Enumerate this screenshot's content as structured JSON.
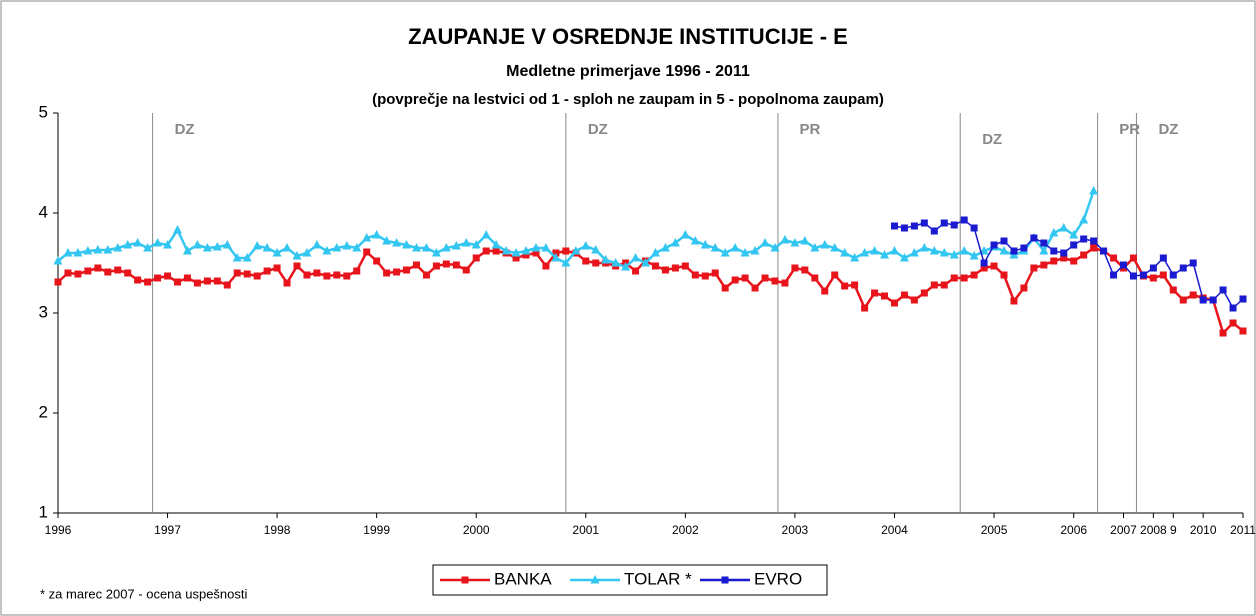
{
  "chart_data": {
    "type": "line",
    "title": "ZAUPANJE V OSREDNJE INSTITUCIJE - E",
    "subtitle": "Medletne primerjave 1996 - 2011",
    "subtitle2": "(povprečje na lestvici od 1 - sploh ne zaupam in 5 - popolnoma zaupam)",
    "note": "* za marec 2007 - ocena uspešnosti",
    "ylim": [
      1,
      5
    ],
    "yticks": [
      1,
      2,
      3,
      4,
      5
    ],
    "categories": [
      "1996",
      null,
      null,
      null,
      null,
      null,
      null,
      null,
      null,
      null,
      null,
      "1997",
      null,
      null,
      null,
      null,
      null,
      null,
      null,
      null,
      null,
      null,
      "1998",
      null,
      null,
      null,
      null,
      null,
      null,
      null,
      null,
      null,
      "1999",
      null,
      null,
      null,
      null,
      null,
      null,
      null,
      null,
      null,
      "2000",
      null,
      null,
      null,
      null,
      null,
      null,
      null,
      null,
      null,
      null,
      "2001",
      null,
      null,
      null,
      null,
      null,
      null,
      null,
      null,
      null,
      "2002",
      null,
      null,
      null,
      null,
      null,
      null,
      null,
      null,
      null,
      null,
      "2003",
      null,
      null,
      null,
      null,
      null,
      null,
      null,
      null,
      null,
      "2004",
      null,
      null,
      null,
      null,
      null,
      null,
      null,
      null,
      null,
      "2005",
      null,
      null,
      null,
      null,
      null,
      null,
      null,
      "2006",
      null,
      null,
      null,
      null,
      "2007",
      null,
      null,
      "2008",
      null,
      "9",
      null,
      null,
      "2010",
      null,
      null,
      null,
      "2011"
    ],
    "annotations": [
      {
        "x": 9.5,
        "label": "DZ"
      },
      {
        "x": 51,
        "label": "DZ"
      },
      {
        "x": 72.3,
        "label": "PR"
      },
      {
        "x": 90.6,
        "label": "DZ"
      },
      {
        "x": 104.4,
        "label": "PR"
      },
      {
        "x": 108.3,
        "label": "DZ"
      }
    ],
    "series": [
      {
        "name": "BANKA",
        "color": "#e8141c",
        "marker": "square",
        "values": [
          3.31,
          3.4,
          3.39,
          3.42,
          3.45,
          3.41,
          3.43,
          3.4,
          3.33,
          3.31,
          3.35,
          3.37,
          3.31,
          3.35,
          3.3,
          3.32,
          3.32,
          3.28,
          3.4,
          3.39,
          3.37,
          3.42,
          3.45,
          3.3,
          3.47,
          3.38,
          3.4,
          3.37,
          3.38,
          3.37,
          3.42,
          3.61,
          3.52,
          3.4,
          3.41,
          3.43,
          3.48,
          3.38,
          3.47,
          3.49,
          3.48,
          3.43,
          3.55,
          3.62,
          3.62,
          3.6,
          3.55,
          3.58,
          3.6,
          3.47,
          3.6,
          3.62,
          3.6,
          3.52,
          3.5,
          3.5,
          3.47,
          3.5,
          3.42,
          3.52,
          3.47,
          3.43,
          3.45,
          3.47,
          3.38,
          3.37,
          3.4,
          3.25,
          3.33,
          3.35,
          3.25,
          3.35,
          3.32,
          3.3,
          3.45,
          3.43,
          3.35,
          3.22,
          3.38,
          3.27,
          3.28,
          3.05,
          3.2,
          3.17,
          3.1,
          3.18,
          3.13,
          3.2,
          3.28,
          3.28,
          3.35,
          3.35,
          3.38,
          3.45,
          3.47,
          3.38,
          3.12,
          3.25,
          3.45,
          3.48,
          3.52,
          3.55,
          3.52,
          3.58,
          3.65,
          3.62,
          3.55,
          3.45,
          3.55,
          3.37,
          3.35,
          3.38,
          3.23,
          3.13,
          3.18,
          3.15,
          3.13,
          2.8,
          2.9,
          2.82
        ]
      },
      {
        "name": "TOLAR *",
        "color": "#33c6f0",
        "marker": "triangle",
        "values": [
          3.52,
          3.6,
          3.6,
          3.62,
          3.63,
          3.63,
          3.65,
          3.68,
          3.7,
          3.65,
          3.7,
          3.68,
          3.83,
          3.62,
          3.68,
          3.65,
          3.66,
          3.68,
          3.55,
          3.55,
          3.67,
          3.65,
          3.6,
          3.65,
          3.57,
          3.6,
          3.68,
          3.62,
          3.65,
          3.67,
          3.65,
          3.75,
          3.78,
          3.72,
          3.7,
          3.68,
          3.65,
          3.65,
          3.6,
          3.65,
          3.67,
          3.7,
          3.68,
          3.78,
          3.68,
          3.62,
          3.6,
          3.62,
          3.65,
          3.65,
          3.55,
          3.5,
          3.62,
          3.67,
          3.63,
          3.53,
          3.5,
          3.46,
          3.55,
          3.5,
          3.6,
          3.65,
          3.7,
          3.78,
          3.72,
          3.68,
          3.65,
          3.6,
          3.65,
          3.6,
          3.62,
          3.7,
          3.65,
          3.73,
          3.7,
          3.72,
          3.65,
          3.68,
          3.65,
          3.6,
          3.55,
          3.6,
          3.62,
          3.58,
          3.62,
          3.55,
          3.6,
          3.65,
          3.62,
          3.6,
          3.58,
          3.62,
          3.57,
          3.62,
          3.66,
          3.62,
          3.58,
          3.62,
          3.75,
          3.62,
          3.8,
          3.85,
          3.78,
          3.93,
          4.22,
          null,
          null,
          null,
          null,
          null,
          null,
          null,
          null,
          null,
          null,
          null,
          null,
          null,
          null,
          null
        ]
      },
      {
        "name": "EVRO",
        "color": "#1a1ad0",
        "marker": "square",
        "values": [
          null,
          null,
          null,
          null,
          null,
          null,
          null,
          null,
          null,
          null,
          null,
          null,
          null,
          null,
          null,
          null,
          null,
          null,
          null,
          null,
          null,
          null,
          null,
          null,
          null,
          null,
          null,
          null,
          null,
          null,
          null,
          null,
          null,
          null,
          null,
          null,
          null,
          null,
          null,
          null,
          null,
          null,
          null,
          null,
          null,
          null,
          null,
          null,
          null,
          null,
          null,
          null,
          null,
          null,
          null,
          null,
          null,
          null,
          null,
          null,
          null,
          null,
          null,
          null,
          null,
          null,
          null,
          null,
          null,
          null,
          null,
          null,
          null,
          null,
          null,
          null,
          null,
          null,
          null,
          null,
          null,
          null,
          null,
          null,
          3.87,
          3.85,
          3.87,
          3.9,
          3.82,
          3.9,
          3.88,
          3.93,
          3.85,
          3.5,
          3.68,
          3.72,
          3.62,
          3.65,
          3.75,
          3.7,
          3.62,
          3.6,
          3.68,
          3.74,
          3.72,
          3.62,
          3.38,
          3.48,
          3.37,
          3.38,
          3.45,
          3.55,
          3.38,
          3.45,
          3.5,
          3.13,
          3.13,
          3.23,
          3.05,
          3.14
        ]
      }
    ]
  }
}
